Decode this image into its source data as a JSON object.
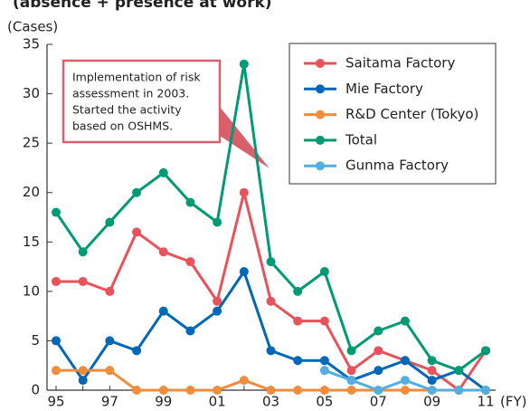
{
  "chart_data": {
    "type": "line",
    "title": "(absence + presence at work)",
    "y_label": "(Cases)",
    "x_label": "(FY)",
    "categories": [
      "95",
      null,
      "97",
      null,
      "99",
      null,
      "01",
      null,
      "03",
      null,
      "05",
      null,
      "07",
      null,
      "09",
      null,
      "11"
    ],
    "series": [
      {
        "name": "Saitama Factory",
        "color": "#e8525a",
        "values": [
          11,
          11,
          10,
          16,
          14,
          13,
          9,
          20,
          9,
          7,
          7,
          2,
          4,
          3,
          2,
          0,
          4
        ]
      },
      {
        "name": "Mie Factory",
        "color": "#0068b7",
        "values": [
          5,
          1,
          5,
          4,
          8,
          6,
          8,
          12,
          4,
          3,
          3,
          1,
          2,
          3,
          1,
          2,
          0
        ]
      },
      {
        "name": "R&D Center (Tokyo)",
        "color": "#f08c3c",
        "values": [
          2,
          2,
          2,
          0,
          0,
          0,
          0,
          1,
          0,
          0,
          0,
          0,
          0,
          0,
          0,
          0,
          0
        ]
      },
      {
        "name": "Total",
        "color": "#009a74",
        "values": [
          18,
          14,
          17,
          20,
          22,
          19,
          17,
          33,
          13,
          10,
          12,
          4,
          6,
          7,
          3,
          2,
          4
        ]
      },
      {
        "name": "Gunma Factory",
        "color": "#55aee0",
        "values": [
          null,
          null,
          null,
          null,
          null,
          null,
          null,
          null,
          null,
          null,
          2,
          1,
          0,
          1,
          0,
          0,
          0
        ]
      }
    ],
    "ylim": [
      0,
      35
    ],
    "yticks": [
      0,
      5,
      10,
      15,
      20,
      25,
      30,
      35
    ],
    "grid": false,
    "legend": "top-right",
    "annotation": [
      "Implementation of risk",
      "assessment in 2003.",
      "Started the activity",
      "based on OSHMS."
    ]
  }
}
